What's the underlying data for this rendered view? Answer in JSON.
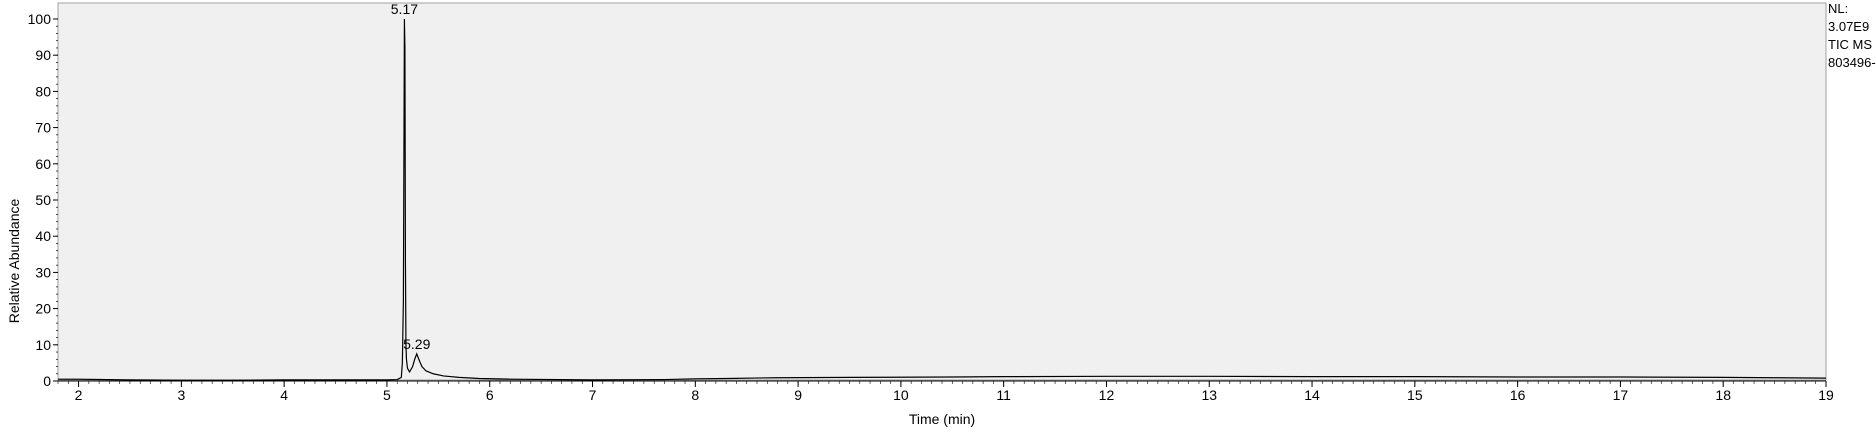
{
  "chart_data": {
    "type": "line",
    "title": "",
    "xlabel": "Time (min)",
    "ylabel": "Relative Abundance",
    "xlim": [
      1.8,
      19.0
    ],
    "ylim": [
      0,
      100
    ],
    "x_ticks": [
      "2",
      "3",
      "4",
      "5",
      "6",
      "7",
      "8",
      "9",
      "10",
      "11",
      "12",
      "13",
      "14",
      "15",
      "16",
      "17",
      "18",
      "19"
    ],
    "y_ticks": [
      "0",
      "10",
      "20",
      "30",
      "40",
      "50",
      "60",
      "70",
      "80",
      "90",
      "100"
    ],
    "grid": false,
    "background": "#f0f0f0",
    "line_color": "#000000",
    "annotations": [
      {
        "x": 5.17,
        "y": 100,
        "label": "5.17"
      },
      {
        "x": 5.29,
        "y": 7.5,
        "label": "5.29"
      }
    ],
    "info": [
      "NL:",
      "3.07E9",
      "TIC  MS",
      "803496-"
    ],
    "series": [
      {
        "x": [
          1.8,
          2.0,
          2.5,
          3.0,
          3.5,
          4.0,
          4.5,
          5.0,
          5.1,
          5.14,
          5.15,
          5.16,
          5.165,
          5.17,
          5.175,
          5.18,
          5.185,
          5.19,
          5.2,
          5.22,
          5.25,
          5.27,
          5.29,
          5.31,
          5.34,
          5.38,
          5.45,
          5.55,
          5.7,
          5.9,
          6.2,
          7.0,
          7.7,
          8.0,
          8.3,
          8.8,
          9.5,
          10.5,
          11.0,
          12.0,
          13.0,
          14.0,
          15.0,
          16.0,
          17.0,
          18.0,
          18.5,
          19.0
        ],
        "y": [
          0.5,
          0.5,
          0.3,
          0.2,
          0.2,
          0.3,
          0.3,
          0.3,
          0.4,
          1.0,
          5.0,
          22.0,
          60.0,
          100.0,
          92.0,
          33.0,
          10.0,
          6.0,
          3.5,
          2.5,
          4.0,
          6.0,
          7.5,
          6.0,
          4.0,
          2.8,
          2.0,
          1.4,
          1.0,
          0.7,
          0.5,
          0.3,
          0.4,
          0.6,
          0.7,
          0.9,
          1.0,
          1.1,
          1.2,
          1.3,
          1.3,
          1.2,
          1.2,
          1.1,
          1.1,
          1.0,
          0.9,
          0.8
        ]
      }
    ]
  }
}
